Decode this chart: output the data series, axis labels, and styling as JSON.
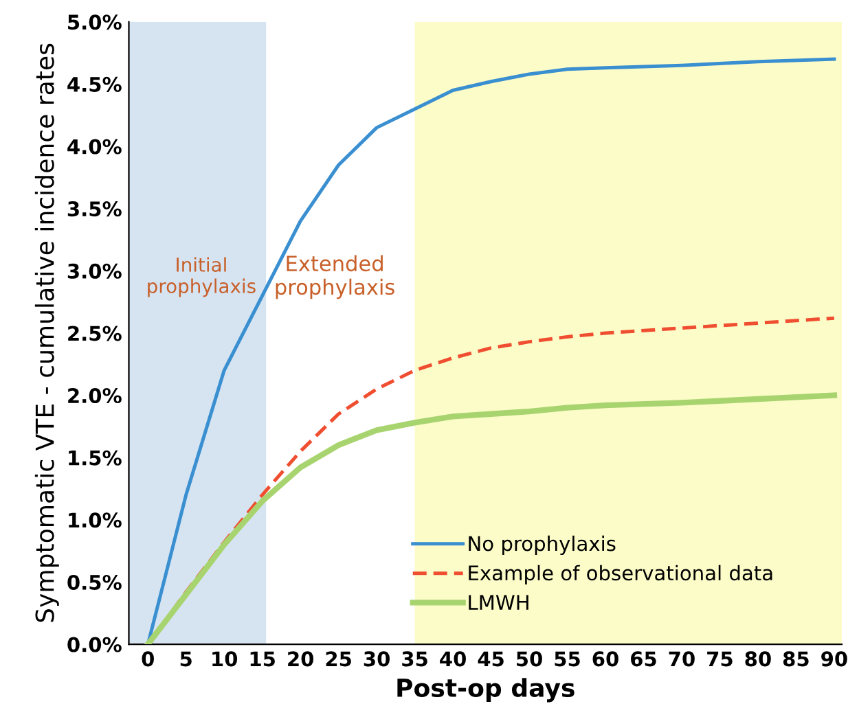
{
  "chart_data": {
    "type": "line",
    "xlabel": "Post-op days",
    "ylabel": "Symptomatic VTE - cumulative incidence rates",
    "xlim": [
      -2.5,
      91
    ],
    "xticks": [
      0,
      5,
      10,
      15,
      20,
      25,
      30,
      35,
      40,
      45,
      50,
      55,
      60,
      65,
      70,
      75,
      80,
      85,
      90
    ],
    "ylim": [
      0,
      0.05
    ],
    "yticks": [
      {
        "value": 0,
        "label": "0.0%"
      },
      {
        "value": 0.005,
        "label": "0.5%"
      },
      {
        "value": 0.01,
        "label": "1.0%"
      },
      {
        "value": 0.015,
        "label": "1.5%"
      },
      {
        "value": 0.02,
        "label": "2.0%"
      },
      {
        "value": 0.025,
        "label": "2.5%"
      },
      {
        "value": 0.03,
        "label": "3.0%"
      },
      {
        "value": 0.035,
        "label": "3.5%"
      },
      {
        "value": 0.04,
        "label": "4.0%"
      },
      {
        "value": 0.045,
        "label": "4.5%"
      },
      {
        "value": 0.05,
        "label": "5.0%"
      }
    ],
    "x": [
      0,
      5,
      10,
      15,
      20,
      25,
      30,
      35,
      40,
      45,
      50,
      55,
      60,
      70,
      80,
      90
    ],
    "series": [
      {
        "name": "No prophylaxis",
        "color": "#3a8fd0",
        "line_style": "solid",
        "values": [
          0,
          0.012,
          0.022,
          0.028,
          0.034,
          0.0385,
          0.0415,
          0.043,
          0.0445,
          0.0452,
          0.0458,
          0.0462,
          0.0463,
          0.0465,
          0.0468,
          0.047
        ]
      },
      {
        "name": "Example of observational data",
        "color": "#f04e30",
        "line_style": "dashed",
        "values": [
          0,
          0.0042,
          0.0082,
          0.012,
          0.0155,
          0.0185,
          0.0205,
          0.022,
          0.023,
          0.0238,
          0.0243,
          0.0247,
          0.025,
          0.0254,
          0.0258,
          0.0262
        ]
      },
      {
        "name": "LMWH",
        "color": "#a8d46f",
        "line_style": "solid",
        "values": [
          0,
          0.004,
          0.008,
          0.0115,
          0.0142,
          0.016,
          0.0172,
          0.0178,
          0.0183,
          0.0185,
          0.0187,
          0.019,
          0.0192,
          0.0194,
          0.0197,
          0.02
        ]
      }
    ],
    "bands": [
      {
        "axis": "x",
        "from": -2.5,
        "to": 15.5,
        "label": "Initial\nprophylaxis",
        "color": "#d6e4f2"
      },
      {
        "axis": "x",
        "from": 35,
        "to": 91,
        "label": "Extended\nprophylaxis",
        "color": "#fcfcc8"
      }
    ],
    "legend": "bottom right",
    "grid": false
  }
}
